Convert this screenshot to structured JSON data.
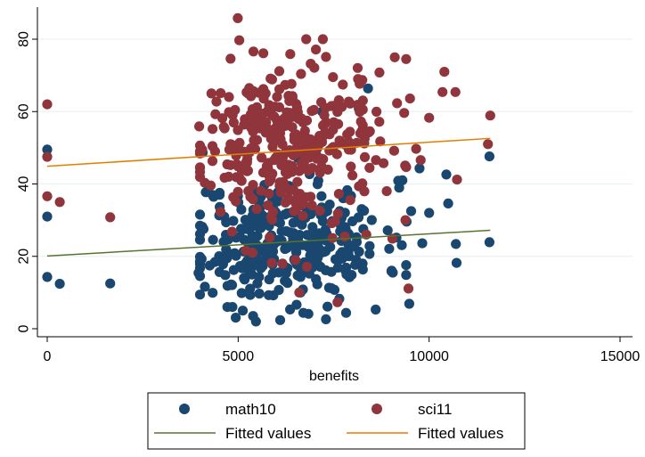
{
  "chart_data": {
    "type": "scatter",
    "xlabel": "benefits",
    "ylabel": "",
    "xlim": [
      0,
      15000
    ],
    "ylim": [
      0,
      88
    ],
    "x_ticks": [
      0,
      5000,
      10000,
      15000
    ],
    "x_tick_labels": [
      "0",
      "5000",
      "10000",
      "15000"
    ],
    "y_ticks": [
      0,
      20,
      40,
      60,
      80
    ],
    "y_tick_labels": [
      "0",
      "20",
      "40",
      "60",
      "80"
    ],
    "grid": "horizontal",
    "legend_position": "bottom",
    "series": [
      {
        "name": "math10",
        "kind": "points",
        "color": "#1a476f",
        "cluster": {
          "x_mean": 6300,
          "x_sd": 1250,
          "y_mean": 24,
          "y_sd": 8.5,
          "count": 330,
          "seed": 11
        },
        "points": [
          [
            0,
            49.5
          ],
          [
            0,
            31
          ],
          [
            0,
            14.3
          ],
          [
            330,
            12.4
          ],
          [
            1650,
            12.5
          ],
          [
            11580,
            47.6
          ],
          [
            11580,
            23.9
          ],
          [
            10700,
            23.4
          ],
          [
            10720,
            18.2
          ],
          [
            10500,
            34.6
          ],
          [
            10450,
            42.6
          ],
          [
            10000,
            32
          ],
          [
            9480,
            6.9
          ],
          [
            9530,
            32.5
          ],
          [
            9410,
            29.6
          ],
          [
            9300,
            41
          ],
          [
            9750,
            44.3
          ],
          [
            9820,
            23.6
          ],
          [
            3960,
            15.4
          ],
          [
            4130,
            11.6
          ],
          [
            6100,
            2.4
          ],
          [
            6840,
            4.1
          ],
          [
            7300,
            2.6
          ],
          [
            8400,
            66.4
          ],
          [
            8160,
            60.8
          ],
          [
            7200,
            60
          ],
          [
            6500,
            58.6
          ],
          [
            5300,
            28.2
          ],
          [
            5120,
            5
          ],
          [
            4620,
            24
          ],
          [
            8600,
            5.3
          ],
          [
            4850,
            6
          ]
        ]
      },
      {
        "name": "sci11",
        "kind": "points",
        "color": "#90353b",
        "cluster": {
          "x_mean": 6200,
          "x_sd": 1200,
          "y_mean": 51,
          "y_sd": 10,
          "count": 330,
          "seed": 29
        },
        "points": [
          [
            0,
            62
          ],
          [
            0,
            47.5
          ],
          [
            0,
            36.6
          ],
          [
            330,
            35
          ],
          [
            1650,
            30.8
          ],
          [
            11600,
            58.9
          ],
          [
            11540,
            51
          ],
          [
            10690,
            65.4
          ],
          [
            10400,
            71
          ],
          [
            10350,
            65.4
          ],
          [
            10730,
            41.2
          ],
          [
            10000,
            58.3
          ],
          [
            9780,
            46.6
          ],
          [
            9660,
            49.7
          ],
          [
            9500,
            63.6
          ],
          [
            9400,
            74.5
          ],
          [
            9100,
            75
          ],
          [
            9380,
            30
          ],
          [
            9460,
            11.1
          ],
          [
            8700,
            70.8
          ],
          [
            8140,
            69
          ],
          [
            4800,
            74.6
          ],
          [
            3980,
            55.9
          ],
          [
            4300,
            65
          ],
          [
            4990,
            85.8
          ],
          [
            5030,
            79.7
          ],
          [
            5400,
            76.6
          ],
          [
            5660,
            76.1
          ],
          [
            7300,
            75.1
          ],
          [
            6900,
            73.2
          ],
          [
            6600,
            10
          ],
          [
            7600,
            7.3
          ],
          [
            6160,
            18
          ],
          [
            5880,
            18.2
          ],
          [
            6500,
            19
          ],
          [
            6800,
            17.1
          ],
          [
            4840,
            26.8
          ],
          [
            5200,
            21.6
          ]
        ]
      },
      {
        "name": "Fitted values",
        "kind": "line",
        "color": "#55752f",
        "x": [
          0,
          11600
        ],
        "y": [
          20.1,
          27.2
        ]
      },
      {
        "name": "Fitted values",
        "kind": "line",
        "color": "#e37e00",
        "x": [
          0,
          11600
        ],
        "y": [
          44.9,
          52.6
        ]
      }
    ]
  }
}
